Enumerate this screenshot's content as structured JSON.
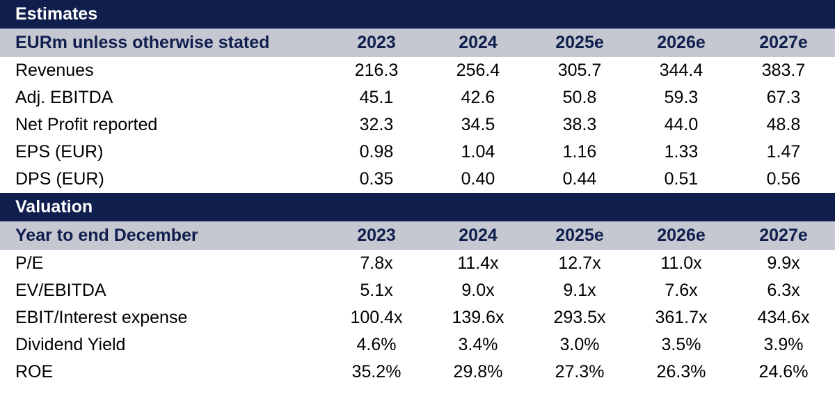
{
  "estimates": {
    "title": "Estimates",
    "header_label": "EURm unless otherwise stated",
    "years": [
      "2023",
      "2024",
      "2025e",
      "2026e",
      "2027e"
    ],
    "rows": [
      {
        "label": "Revenues",
        "values": [
          "216.3",
          "256.4",
          "305.7",
          "344.4",
          "383.7"
        ]
      },
      {
        "label": "Adj. EBITDA",
        "values": [
          "45.1",
          "42.6",
          "50.8",
          "59.3",
          "67.3"
        ]
      },
      {
        "label": "Net Profit reported",
        "values": [
          "32.3",
          "34.5",
          "38.3",
          "44.0",
          "48.8"
        ]
      },
      {
        "label": "EPS (EUR)",
        "values": [
          "0.98",
          "1.04",
          "1.16",
          "1.33",
          "1.47"
        ]
      },
      {
        "label": "DPS (EUR)",
        "values": [
          "0.35",
          "0.40",
          "0.44",
          "0.51",
          "0.56"
        ]
      }
    ]
  },
  "valuation": {
    "title": "Valuation",
    "header_label": "Year to end December",
    "years": [
      "2023",
      "2024",
      "2025e",
      "2026e",
      "2027e"
    ],
    "rows": [
      {
        "label": "P/E",
        "values": [
          "7.8x",
          "11.4x",
          "12.7x",
          "11.0x",
          "9.9x"
        ]
      },
      {
        "label": "EV/EBITDA",
        "values": [
          "5.1x",
          "9.0x",
          "9.1x",
          "7.6x",
          "6.3x"
        ]
      },
      {
        "label": "EBIT/Interest expense",
        "values": [
          "100.4x",
          "139.6x",
          "293.5x",
          "361.7x",
          "434.6x"
        ]
      },
      {
        "label": "Dividend Yield",
        "values": [
          "4.6%",
          "3.4%",
          "3.0%",
          "3.5%",
          "3.9%"
        ]
      },
      {
        "label": "ROE",
        "values": [
          "35.2%",
          "29.8%",
          "27.3%",
          "26.3%",
          "24.6%"
        ]
      }
    ]
  },
  "colors": {
    "title_bar": "#0f1e4d",
    "header_bar": "#c6c8d1",
    "header_text": "#0f1e4d"
  }
}
